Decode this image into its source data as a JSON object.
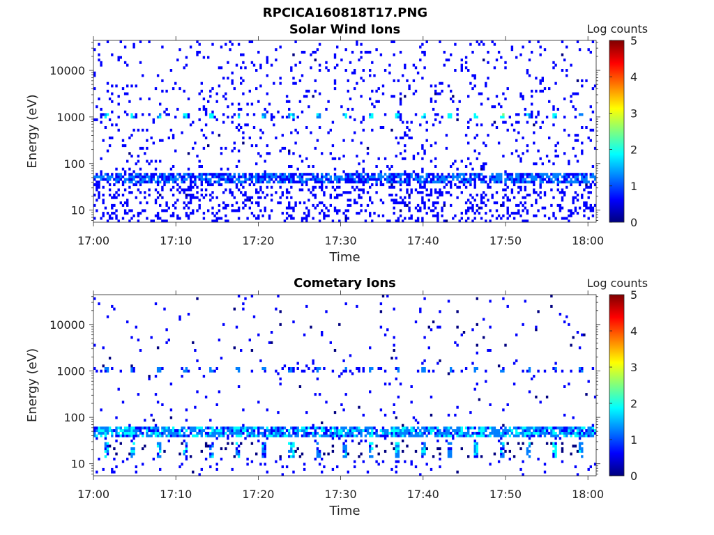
{
  "figure": {
    "title": "RPCICA160818T17.PNG"
  },
  "colormap": [
    "#00007f",
    "#0000ff",
    "#007fff",
    "#00ffff",
    "#7fff7f",
    "#ffff00",
    "#ff7f00",
    "#ff0000",
    "#7f0000"
  ],
  "chart_data": [
    {
      "type": "heatmap",
      "title": "Solar Wind Ions",
      "xlabel": "Time",
      "ylabel": "Energy (eV)",
      "yscale": "log",
      "xlim": [
        "17:00",
        "18:01"
      ],
      "ylim": [
        5.5,
        44000
      ],
      "xticks": [
        "17:00",
        "17:10",
        "17:20",
        "17:30",
        "17:40",
        "17:50",
        "18:00"
      ],
      "yticks": [
        10,
        100,
        1000,
        10000
      ],
      "ytick_labels": [
        "10",
        "100",
        "1000",
        "10000"
      ],
      "colorbar": {
        "label": "Log counts",
        "range": [
          0,
          5
        ],
        "ticks": [
          "0",
          "1",
          "2",
          "3",
          "4",
          "5"
        ]
      },
      "features": {
        "background_noise_log_counts": 0.3,
        "low_energy_band_eV": [
          40,
          60
        ],
        "low_energy_band_log_counts": 1.2,
        "peak_energy_eV": 1050,
        "peak_log_counts": 2.0,
        "sweep_period_minutes": 3.2
      }
    },
    {
      "type": "heatmap",
      "title": "Cometary Ions",
      "xlabel": "Time",
      "ylabel": "Energy (eV)",
      "yscale": "log",
      "xlim": [
        "17:00",
        "18:01"
      ],
      "ylim": [
        5.5,
        44000
      ],
      "xticks": [
        "17:00",
        "17:10",
        "17:20",
        "17:30",
        "17:40",
        "17:50",
        "18:00"
      ],
      "yticks": [
        10,
        100,
        1000,
        10000
      ],
      "ytick_labels": [
        "10",
        "100",
        "1000",
        "10000"
      ],
      "colorbar": {
        "label": "Log counts",
        "range": [
          0,
          5
        ],
        "ticks": [
          "0",
          "1",
          "2",
          "3",
          "4",
          "5"
        ]
      },
      "features": {
        "background_noise_log_counts": 0.2,
        "low_energy_band_eV": [
          40,
          60
        ],
        "low_energy_band_log_counts": 1.6,
        "cluster_energy_eV": [
          13,
          30
        ],
        "cluster_log_counts": 1.4,
        "peak_energy_eV": 1050,
        "peak_log_counts": 1.3,
        "sweep_period_minutes": 3.2
      }
    }
  ]
}
